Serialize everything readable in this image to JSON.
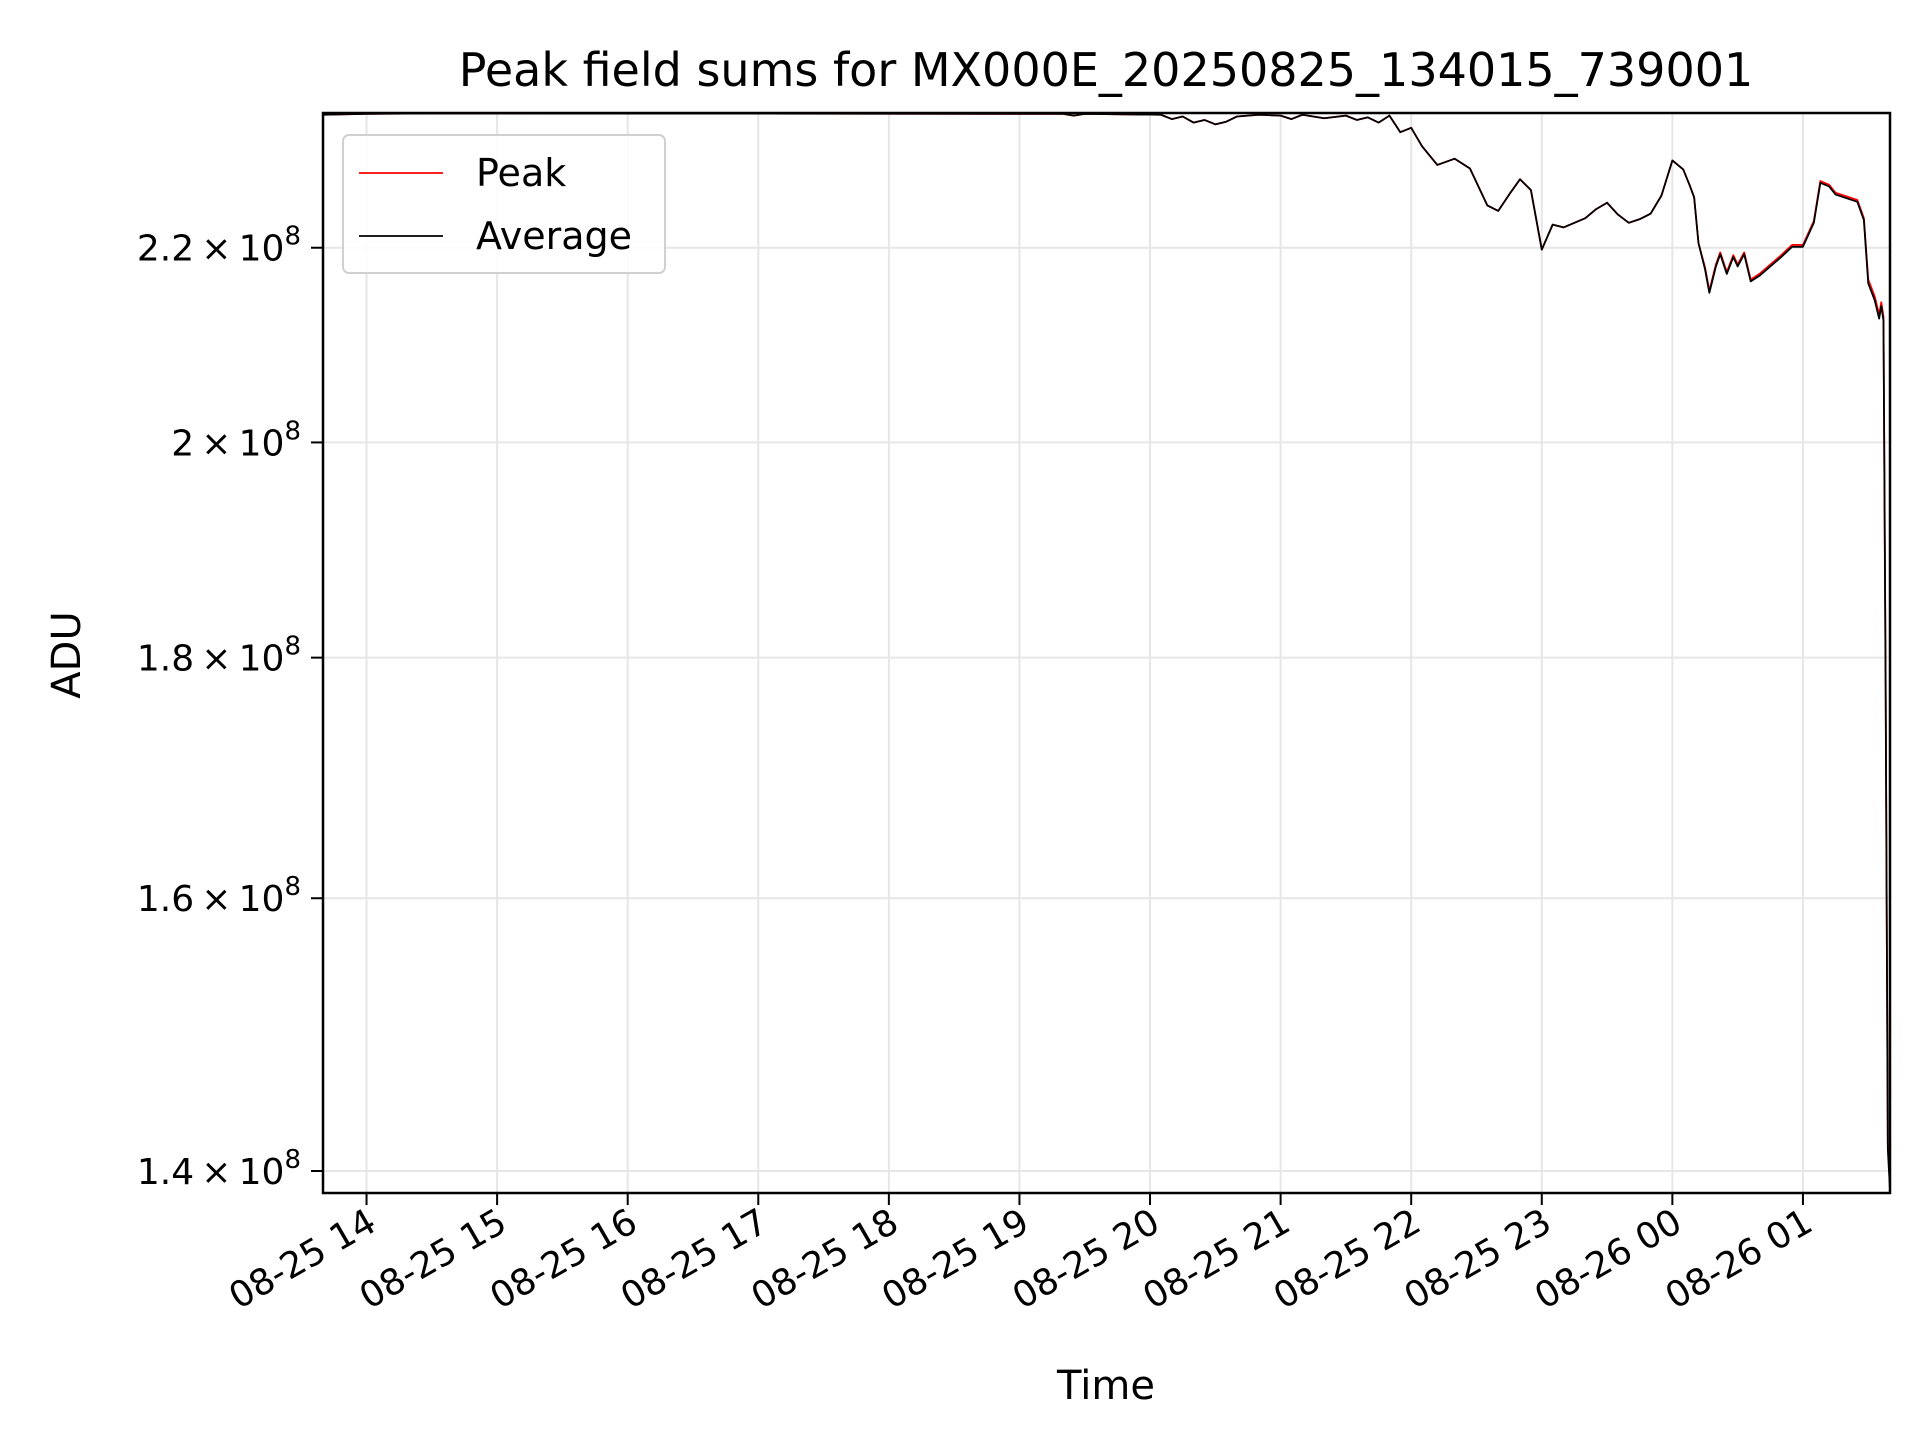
{
  "chart_data": {
    "type": "line",
    "title": "Peak field sums for MX000E_20250825_134015_739001",
    "xlabel": "Time",
    "ylabel": "ADU",
    "yscale": "log",
    "xlim": [
      "2025-08-25 13:40",
      "2025-08-26 01:40"
    ],
    "ylim": [
      138500000,
      235000000
    ],
    "x_ticks": [
      "08-25 14",
      "08-25 15",
      "08-25 16",
      "08-25 17",
      "08-25 18",
      "08-25 19",
      "08-25 20",
      "08-25 21",
      "08-25 22",
      "08-25 23",
      "08-26 00",
      "08-26 01"
    ],
    "y_ticks": [
      {
        "value": 140000000,
        "mantissa": "1.4",
        "exponent": "8"
      },
      {
        "value": 160000000,
        "mantissa": "1.6",
        "exponent": "8"
      },
      {
        "value": 180000000,
        "mantissa": "1.8",
        "exponent": "8"
      },
      {
        "value": 200000000,
        "mantissa": "2",
        "exponent": "8"
      },
      {
        "value": 220000000,
        "mantissa": "2.2",
        "exponent": "8"
      }
    ],
    "grid": true,
    "legend_position": "upper-left",
    "series": [
      {
        "name": "Peak",
        "color": "#ff0000",
        "points": [
          [
            "2025-08-25 13:40",
            234800000
          ],
          [
            "2025-08-25 14:00",
            234900000
          ],
          [
            "2025-08-25 14:30",
            234950000
          ],
          [
            "2025-08-25 19:20",
            234900000
          ],
          [
            "2025-08-25 19:25",
            234700000
          ],
          [
            "2025-08-25 19:30",
            234900000
          ],
          [
            "2025-08-25 20:05",
            234800000
          ],
          [
            "2025-08-25 20:10",
            234300000
          ],
          [
            "2025-08-25 20:15",
            234600000
          ],
          [
            "2025-08-25 20:20",
            233900000
          ],
          [
            "2025-08-25 20:25",
            234200000
          ],
          [
            "2025-08-25 20:30",
            233700000
          ],
          [
            "2025-08-25 20:35",
            234000000
          ],
          [
            "2025-08-25 20:40",
            234600000
          ],
          [
            "2025-08-25 20:50",
            234800000
          ],
          [
            "2025-08-25 21:00",
            234700000
          ],
          [
            "2025-08-25 21:05",
            234300000
          ],
          [
            "2025-08-25 21:10",
            234800000
          ],
          [
            "2025-08-25 21:20",
            234400000
          ],
          [
            "2025-08-25 21:30",
            234700000
          ],
          [
            "2025-08-25 21:35",
            234200000
          ],
          [
            "2025-08-25 21:40",
            234500000
          ],
          [
            "2025-08-25 21:45",
            233900000
          ],
          [
            "2025-08-25 21:50",
            234700000
          ],
          [
            "2025-08-25 21:55",
            232800000
          ],
          [
            "2025-08-25 22:00",
            233300000
          ],
          [
            "2025-08-25 22:05",
            231200000
          ],
          [
            "2025-08-25 22:12",
            229100000
          ],
          [
            "2025-08-25 22:20",
            229800000
          ],
          [
            "2025-08-25 22:27",
            228700000
          ],
          [
            "2025-08-25 22:35",
            224600000
          ],
          [
            "2025-08-25 22:40",
            224000000
          ],
          [
            "2025-08-25 22:45",
            225800000
          ],
          [
            "2025-08-25 22:50",
            227500000
          ],
          [
            "2025-08-25 22:55",
            226300000
          ],
          [
            "2025-08-25 23:00",
            219800000
          ],
          [
            "2025-08-25 23:05",
            222500000
          ],
          [
            "2025-08-25 23:10",
            222200000
          ],
          [
            "2025-08-25 23:15",
            222700000
          ],
          [
            "2025-08-25 23:20",
            223200000
          ],
          [
            "2025-08-25 23:25",
            224200000
          ],
          [
            "2025-08-25 23:30",
            224900000
          ],
          [
            "2025-08-25 23:35",
            223600000
          ],
          [
            "2025-08-25 23:40",
            222700000
          ],
          [
            "2025-08-25 23:45",
            223100000
          ],
          [
            "2025-08-25 23:50",
            223700000
          ],
          [
            "2025-08-25 23:55",
            225700000
          ],
          [
            "2025-08-26 00:00",
            229600000
          ],
          [
            "2025-08-26 00:05",
            228600000
          ],
          [
            "2025-08-26 00:08",
            226800000
          ],
          [
            "2025-08-26 00:10",
            225500000
          ],
          [
            "2025-08-26 00:12",
            220500000
          ],
          [
            "2025-08-26 00:15",
            217900000
          ],
          [
            "2025-08-26 00:17",
            215400000
          ],
          [
            "2025-08-26 00:20",
            218200000
          ],
          [
            "2025-08-26 00:22",
            219500000
          ],
          [
            "2025-08-26 00:25",
            217400000
          ],
          [
            "2025-08-26 00:28",
            219200000
          ],
          [
            "2025-08-26 00:30",
            218200000
          ],
          [
            "2025-08-26 00:33",
            219500000
          ],
          [
            "2025-08-26 00:36",
            216600000
          ],
          [
            "2025-08-26 00:40",
            217200000
          ],
          [
            "2025-08-26 00:45",
            218200000
          ],
          [
            "2025-08-26 00:50",
            219200000
          ],
          [
            "2025-08-26 00:55",
            220300000
          ],
          [
            "2025-08-26 01:00",
            220300000
          ],
          [
            "2025-08-26 01:05",
            222900000
          ],
          [
            "2025-08-26 01:08",
            227300000
          ],
          [
            "2025-08-26 01:12",
            226900000
          ],
          [
            "2025-08-26 01:15",
            226000000
          ],
          [
            "2025-08-26 01:20",
            225600000
          ],
          [
            "2025-08-26 01:25",
            225200000
          ],
          [
            "2025-08-26 01:28",
            223200000
          ],
          [
            "2025-08-26 01:30",
            216600000
          ],
          [
            "2025-08-26 01:33",
            214800000
          ],
          [
            "2025-08-26 01:35",
            212900000
          ],
          [
            "2025-08-26 01:36",
            214200000
          ],
          [
            "2025-08-26 01:37",
            212700000
          ],
          [
            "2025-08-26 01:38",
            178000000
          ],
          [
            "2025-08-26 01:39",
            142000000
          ],
          [
            "2025-08-26 01:40",
            138900000
          ]
        ]
      },
      {
        "name": "Average",
        "color": "#000000",
        "points": [
          [
            "2025-08-25 13:40",
            234800000
          ],
          [
            "2025-08-25 14:00",
            234900000
          ],
          [
            "2025-08-25 14:30",
            234950000
          ],
          [
            "2025-08-25 19:20",
            234900000
          ],
          [
            "2025-08-25 19:25",
            234700000
          ],
          [
            "2025-08-25 19:30",
            234900000
          ],
          [
            "2025-08-25 20:05",
            234800000
          ],
          [
            "2025-08-25 20:10",
            234300000
          ],
          [
            "2025-08-25 20:15",
            234600000
          ],
          [
            "2025-08-25 20:20",
            233900000
          ],
          [
            "2025-08-25 20:25",
            234200000
          ],
          [
            "2025-08-25 20:30",
            233700000
          ],
          [
            "2025-08-25 20:35",
            234000000
          ],
          [
            "2025-08-25 20:40",
            234600000
          ],
          [
            "2025-08-25 20:50",
            234800000
          ],
          [
            "2025-08-25 21:00",
            234700000
          ],
          [
            "2025-08-25 21:05",
            234300000
          ],
          [
            "2025-08-25 21:10",
            234800000
          ],
          [
            "2025-08-25 21:20",
            234400000
          ],
          [
            "2025-08-25 21:30",
            234700000
          ],
          [
            "2025-08-25 21:35",
            234200000
          ],
          [
            "2025-08-25 21:40",
            234500000
          ],
          [
            "2025-08-25 21:45",
            233900000
          ],
          [
            "2025-08-25 21:50",
            234700000
          ],
          [
            "2025-08-25 21:55",
            232800000
          ],
          [
            "2025-08-25 22:00",
            233300000
          ],
          [
            "2025-08-25 22:05",
            231200000
          ],
          [
            "2025-08-25 22:12",
            229100000
          ],
          [
            "2025-08-25 22:20",
            229800000
          ],
          [
            "2025-08-25 22:27",
            228700000
          ],
          [
            "2025-08-25 22:35",
            224600000
          ],
          [
            "2025-08-25 22:40",
            224000000
          ],
          [
            "2025-08-25 22:45",
            225800000
          ],
          [
            "2025-08-25 22:50",
            227500000
          ],
          [
            "2025-08-25 22:55",
            226300000
          ],
          [
            "2025-08-25 23:00",
            219800000
          ],
          [
            "2025-08-25 23:05",
            222500000
          ],
          [
            "2025-08-25 23:10",
            222200000
          ],
          [
            "2025-08-25 23:15",
            222700000
          ],
          [
            "2025-08-25 23:20",
            223200000
          ],
          [
            "2025-08-25 23:25",
            224200000
          ],
          [
            "2025-08-25 23:30",
            224900000
          ],
          [
            "2025-08-25 23:35",
            223600000
          ],
          [
            "2025-08-25 23:40",
            222700000
          ],
          [
            "2025-08-25 23:45",
            223100000
          ],
          [
            "2025-08-25 23:50",
            223700000
          ],
          [
            "2025-08-25 23:55",
            225700000
          ],
          [
            "2025-08-26 00:00",
            229600000
          ],
          [
            "2025-08-26 00:05",
            228600000
          ],
          [
            "2025-08-26 00:08",
            226800000
          ],
          [
            "2025-08-26 00:10",
            225500000
          ],
          [
            "2025-08-26 00:12",
            220500000
          ],
          [
            "2025-08-26 00:15",
            217700000
          ],
          [
            "2025-08-26 00:17",
            215200000
          ],
          [
            "2025-08-26 00:20",
            218000000
          ],
          [
            "2025-08-26 00:22",
            219300000
          ],
          [
            "2025-08-26 00:25",
            217200000
          ],
          [
            "2025-08-26 00:28",
            219000000
          ],
          [
            "2025-08-26 00:30",
            218000000
          ],
          [
            "2025-08-26 00:33",
            219300000
          ],
          [
            "2025-08-26 00:36",
            216400000
          ],
          [
            "2025-08-26 00:40",
            217000000
          ],
          [
            "2025-08-26 00:45",
            218000000
          ],
          [
            "2025-08-26 00:50",
            219000000
          ],
          [
            "2025-08-26 00:55",
            220100000
          ],
          [
            "2025-08-26 01:00",
            220100000
          ],
          [
            "2025-08-26 01:05",
            222700000
          ],
          [
            "2025-08-26 01:08",
            227100000
          ],
          [
            "2025-08-26 01:12",
            226700000
          ],
          [
            "2025-08-26 01:15",
            225800000
          ],
          [
            "2025-08-26 01:20",
            225400000
          ],
          [
            "2025-08-26 01:25",
            225000000
          ],
          [
            "2025-08-26 01:28",
            223000000
          ],
          [
            "2025-08-26 01:30",
            216200000
          ],
          [
            "2025-08-26 01:33",
            214400000
          ],
          [
            "2025-08-26 01:35",
            212500000
          ],
          [
            "2025-08-26 01:36",
            213800000
          ],
          [
            "2025-08-26 01:37",
            212300000
          ],
          [
            "2025-08-26 01:38",
            177000000
          ],
          [
            "2025-08-26 01:39",
            141500000
          ],
          [
            "2025-08-26 01:40",
            138700000
          ]
        ]
      }
    ]
  }
}
